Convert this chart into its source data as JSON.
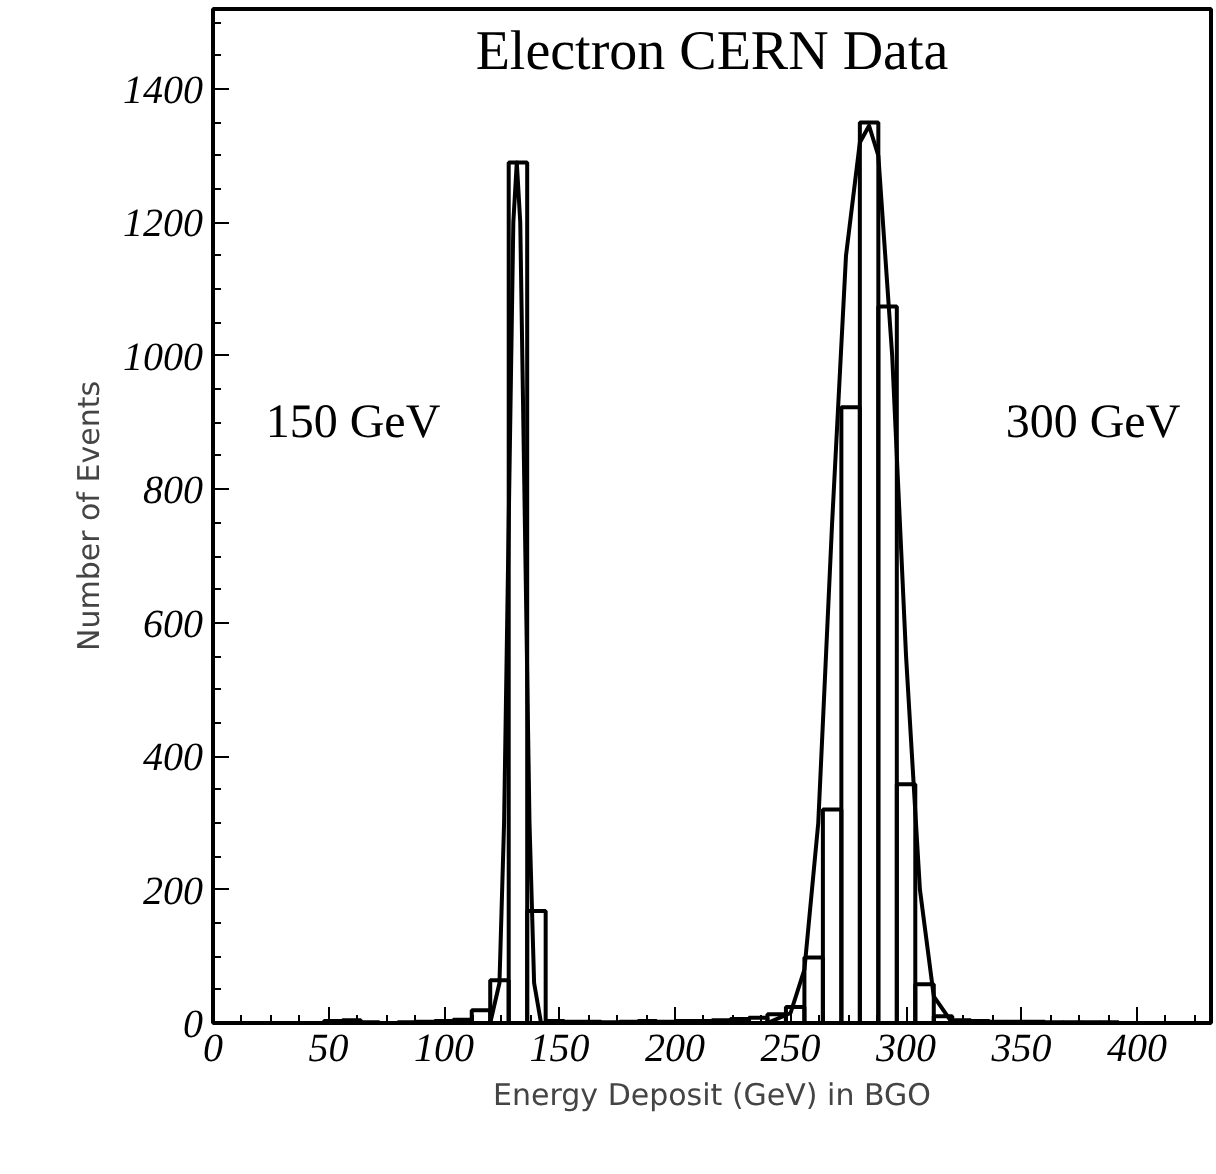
{
  "chart_data": {
    "type": "histogram",
    "title": "Electron CERN Data",
    "xlabel": "Energy Deposit (GeV) in BGO",
    "ylabel": "Number of Events",
    "bins": [
      0,
      8,
      16,
      24,
      32,
      40,
      48,
      56,
      64,
      72,
      80,
      88,
      96,
      104,
      112,
      120,
      128,
      136,
      144,
      152,
      160,
      168,
      176,
      184,
      192,
      200,
      208,
      216,
      224,
      232,
      240,
      248,
      256,
      264,
      272,
      280,
      288,
      296,
      304,
      312,
      320,
      328,
      336,
      344,
      352,
      360,
      368,
      376,
      384,
      392,
      400,
      408,
      416,
      424,
      432
    ],
    "values": [
      0,
      0,
      0,
      0,
      0,
      0,
      3,
      4,
      1,
      0,
      1,
      2,
      3,
      5,
      19,
      64,
      1290,
      168,
      3,
      2,
      2,
      1,
      2,
      3,
      2,
      3,
      3,
      4,
      6,
      8,
      13,
      24,
      98,
      320,
      923,
      1350,
      1074,
      358,
      58,
      10,
      4,
      3,
      2,
      2,
      2,
      1,
      1,
      1,
      1,
      0,
      0,
      0,
      0,
      0
    ],
    "color": "#000000",
    "series": [
      {
        "type": "line",
        "color": "#000000",
        "x": [
          120,
          124,
          126,
          128,
          130,
          131.5,
          133,
          135,
          137,
          139,
          142
        ],
        "values": [
          0,
          60,
          300,
          750,
          1200,
          1290,
          1200,
          750,
          300,
          60,
          0
        ]
      },
      {
        "type": "line",
        "color": "#000000",
        "x": [
          240,
          250,
          256,
          262,
          268,
          274,
          280,
          284,
          288,
          294,
          300,
          306,
          312,
          320
        ],
        "values": [
          0,
          15,
          80,
          300,
          750,
          1150,
          1320,
          1345,
          1300,
          1000,
          550,
          200,
          40,
          0
        ]
      }
    ],
    "annotations": [
      "150 GeV",
      "300 GeV"
    ],
    "xlim": [
      0,
      432
    ],
    "ylim": [
      0,
      1520
    ],
    "xticks": [
      0,
      50,
      100,
      150,
      200,
      250,
      300,
      350,
      400
    ],
    "yticks": [
      0,
      200,
      400,
      600,
      800,
      1000,
      1200,
      1400
    ],
    "grid": false
  }
}
